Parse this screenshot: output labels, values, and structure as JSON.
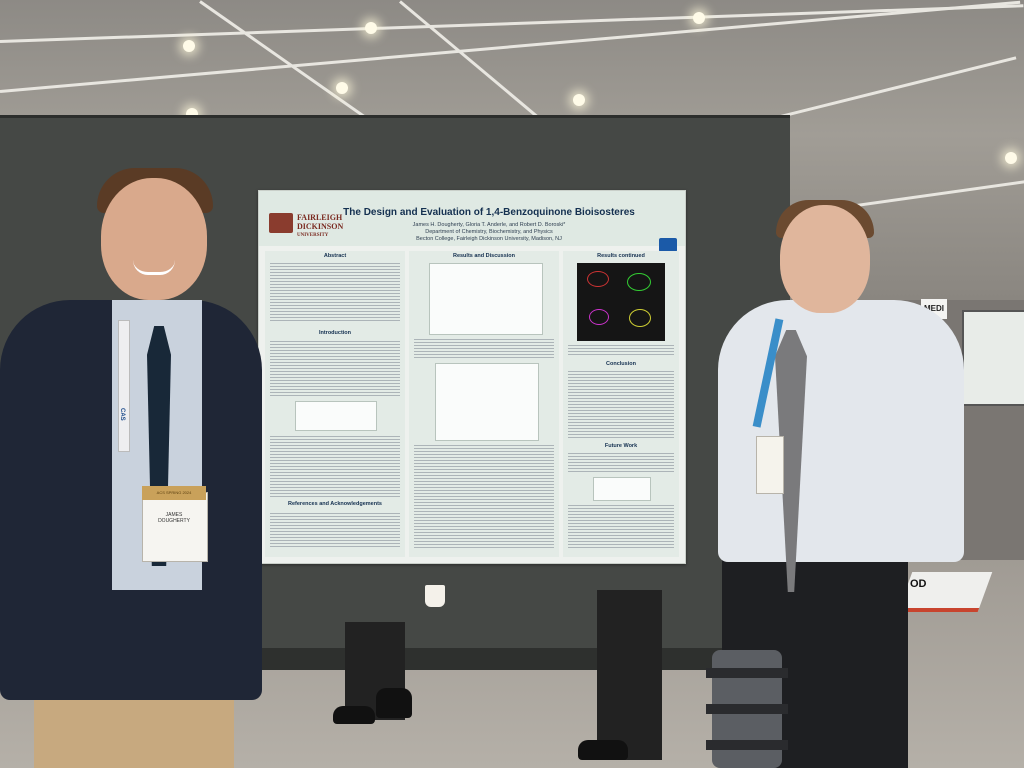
{
  "poster": {
    "title": "The Design and Evaluation of 1,4-Benzoquinone Bioisosteres",
    "authors": "James H. Dougherty, Gloria T. Anderle, and Robert D. Boroski*",
    "department": "Department of Chemistry, Biochemistry, and Physics",
    "affiliation": "Becton College, Fairleigh Dickinson University, Madison, NJ",
    "university_line1": "FAIRLEIGH",
    "university_line2": "DICKINSON",
    "university_line3": "UNIVERSITY",
    "sections": {
      "abstract": "Abstract",
      "introduction": "Introduction",
      "references": "References and Acknowledgements",
      "results": "Results and Discussion",
      "results_continued": "Results continued",
      "conclusion": "Conclusion",
      "future_work": "Future Work"
    }
  },
  "badge_left": {
    "header": "ACS SPRING 2024",
    "name_line1": "JAMES",
    "name_line2": "DOUGHERTY"
  },
  "lanyard_text": "CAS",
  "signs": {
    "medi": "MEDI",
    "floor": "OD"
  },
  "colors": {
    "board": "#454845",
    "poster_bg": "#eef1ee",
    "title_navy": "#143050",
    "university_red": "#7a2a20"
  }
}
